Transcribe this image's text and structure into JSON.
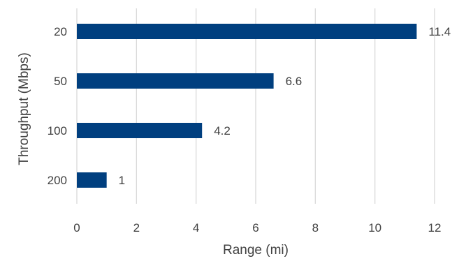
{
  "chart_data": {
    "type": "bar",
    "orientation": "horizontal",
    "categories": [
      "20",
      "50",
      "100",
      "200"
    ],
    "values": [
      11.4,
      6.6,
      4.2,
      1
    ],
    "data_labels": [
      "11.4",
      "6.6",
      "4.2",
      "1"
    ],
    "xlabel": "Range (mi)",
    "ylabel": "Throughput (Mbps)",
    "xlim": [
      0,
      12
    ],
    "xticks": [
      "0",
      "2",
      "4",
      "6",
      "8",
      "10",
      "12"
    ],
    "grid": "vertical",
    "legend": "none",
    "bar_color": "#003f7f"
  }
}
